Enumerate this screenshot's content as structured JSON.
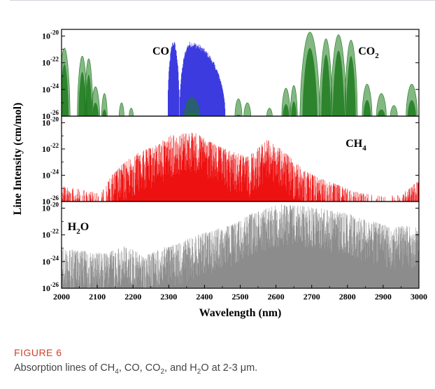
{
  "caption": {
    "label": "FIGURE 6",
    "text_parts": [
      "Absorption lines of CH",
      "4",
      ", CO, CO",
      "2",
      ", and H",
      "2",
      "O at 2-3 μm."
    ]
  },
  "chart_data": {
    "type": "line",
    "title": "",
    "xlabel": "Wavelength (nm)",
    "ylabel": "Line Intensity (cm/mol)",
    "x_range": [
      2000,
      3000
    ],
    "x_ticks": [
      2000,
      2100,
      2200,
      2300,
      2400,
      2500,
      2600,
      2700,
      2800,
      2900,
      3000
    ],
    "y_scale": "log",
    "y_range_log10": [
      -26,
      -19.5
    ],
    "y_ticks_exponent": [
      -26,
      -24,
      -22,
      -20
    ],
    "y_tick_base": "10",
    "panels": [
      {
        "name": "CO / CO2",
        "labels": [
          {
            "main": "CO",
            "sub": ""
          },
          {
            "main": "CO",
            "sub": "2"
          }
        ],
        "series": [
          {
            "name": "CO",
            "color": "#3b3bdf",
            "style": "dense-lines",
            "bands": [
              {
                "start": 2297,
                "end": 2330,
                "peak": 2330,
                "peak_log": -20.3
              },
              {
                "start": 2330,
                "end": 2458,
                "peak": 2360,
                "peak_log": -20.4
              }
            ]
          },
          {
            "name": "CO2",
            "color": "#1e7b1e",
            "style": "filled-lobes",
            "lobes": [
              {
                "center": 2008,
                "half_width": 16,
                "peak_log": -20.9
              },
              {
                "center": 2058,
                "half_width": 14,
                "peak_log": -21.5
              },
              {
                "center": 2076,
                "half_width": 12,
                "peak_log": -21.7
              },
              {
                "center": 2095,
                "half_width": 12,
                "peak_log": -23.8
              },
              {
                "center": 2120,
                "half_width": 8,
                "peak_log": -24.3
              },
              {
                "center": 2168,
                "half_width": 7,
                "peak_log": -25.0
              },
              {
                "center": 2195,
                "half_width": 6,
                "peak_log": -25.4
              },
              {
                "center": 2365,
                "half_width": 22,
                "peak_log": -24.6
              },
              {
                "center": 2495,
                "half_width": 10,
                "peak_log": -24.7
              },
              {
                "center": 2520,
                "half_width": 10,
                "peak_log": -25.0
              },
              {
                "center": 2582,
                "half_width": 8,
                "peak_log": -25.4
              },
              {
                "center": 2628,
                "half_width": 12,
                "peak_log": -23.9
              },
              {
                "center": 2650,
                "half_width": 10,
                "peak_log": -23.7
              },
              {
                "center": 2695,
                "half_width": 28,
                "peak_log": -19.7
              },
              {
                "center": 2740,
                "half_width": 18,
                "peak_log": -20.2
              },
              {
                "center": 2775,
                "half_width": 22,
                "peak_log": -19.9
              },
              {
                "center": 2810,
                "half_width": 18,
                "peak_log": -20.3
              },
              {
                "center": 2855,
                "half_width": 14,
                "peak_log": -23.6
              },
              {
                "center": 2895,
                "half_width": 14,
                "peak_log": -24.3
              },
              {
                "center": 2930,
                "half_width": 10,
                "peak_log": -25.2
              },
              {
                "center": 2980,
                "half_width": 16,
                "peak_log": -23.6
              }
            ]
          }
        ]
      },
      {
        "name": "CH4",
        "labels": [
          {
            "main": "CH",
            "sub": "4"
          }
        ],
        "series": [
          {
            "name": "CH4",
            "color": "#ee1111",
            "style": "dense-lines",
            "envelope": [
              [
                2000,
                -24.8
              ],
              [
                2040,
                -25.0
              ],
              [
                2080,
                -25.2
              ],
              [
                2110,
                -25.4
              ],
              [
                2140,
                -24.0
              ],
              [
                2180,
                -22.9
              ],
              [
                2220,
                -22.2
              ],
              [
                2260,
                -21.8
              ],
              [
                2300,
                -21.0
              ],
              [
                2340,
                -20.8
              ],
              [
                2370,
                -20.7
              ],
              [
                2400,
                -21.2
              ],
              [
                2440,
                -21.8
              ],
              [
                2480,
                -22.2
              ],
              [
                2520,
                -22.6
              ],
              [
                2550,
                -21.9
              ],
              [
                2575,
                -21.3
              ],
              [
                2600,
                -21.7
              ],
              [
                2640,
                -22.6
              ],
              [
                2680,
                -23.6
              ],
              [
                2720,
                -24.2
              ],
              [
                2760,
                -24.6
              ],
              [
                2800,
                -25.0
              ],
              [
                2850,
                -25.4
              ],
              [
                2900,
                -25.6
              ],
              [
                2950,
                -25.5
              ],
              [
                2980,
                -24.8
              ],
              [
                3000,
                -24.4
              ]
            ]
          }
        ]
      },
      {
        "name": "H2O",
        "labels": [
          {
            "main": "H",
            "sub": "2",
            "suffix": "O"
          }
        ],
        "series": [
          {
            "name": "H2O",
            "color": "#8c8c8c",
            "style": "dense-lines",
            "envelope": [
              [
                2000,
                -23.0
              ],
              [
                2060,
                -23.2
              ],
              [
                2120,
                -23.4
              ],
              [
                2180,
                -22.8
              ],
              [
                2230,
                -23.6
              ],
              [
                2280,
                -23.0
              ],
              [
                2330,
                -22.6
              ],
              [
                2380,
                -22.0
              ],
              [
                2430,
                -21.6
              ],
              [
                2480,
                -21.2
              ],
              [
                2530,
                -20.4
              ],
              [
                2580,
                -19.9
              ],
              [
                2620,
                -19.7
              ],
              [
                2680,
                -19.8
              ],
              [
                2740,
                -20.1
              ],
              [
                2800,
                -20.4
              ],
              [
                2860,
                -20.9
              ],
              [
                2920,
                -21.4
              ],
              [
                2960,
                -21.3
              ],
              [
                3000,
                -21.5
              ]
            ]
          }
        ]
      }
    ]
  }
}
